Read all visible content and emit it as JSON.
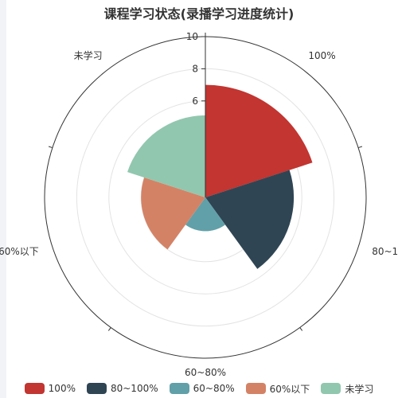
{
  "chart_data": {
    "type": "polar-bar",
    "title": "课程学习状态(录播学习进度统计)",
    "categories": [
      "100%",
      "80~100%",
      "60~80%",
      "60%以下",
      "未学习"
    ],
    "values": [
      7.0,
      5.5,
      2.1,
      4.0,
      5.1
    ],
    "colors": [
      "#c23531",
      "#2f4554",
      "#61a0a8",
      "#d48265",
      "#91c7ae"
    ],
    "radial_ticks": [
      "6",
      "8",
      "10"
    ],
    "rlim": [
      0,
      10
    ],
    "legend_position": "bottom",
    "grid": true
  }
}
